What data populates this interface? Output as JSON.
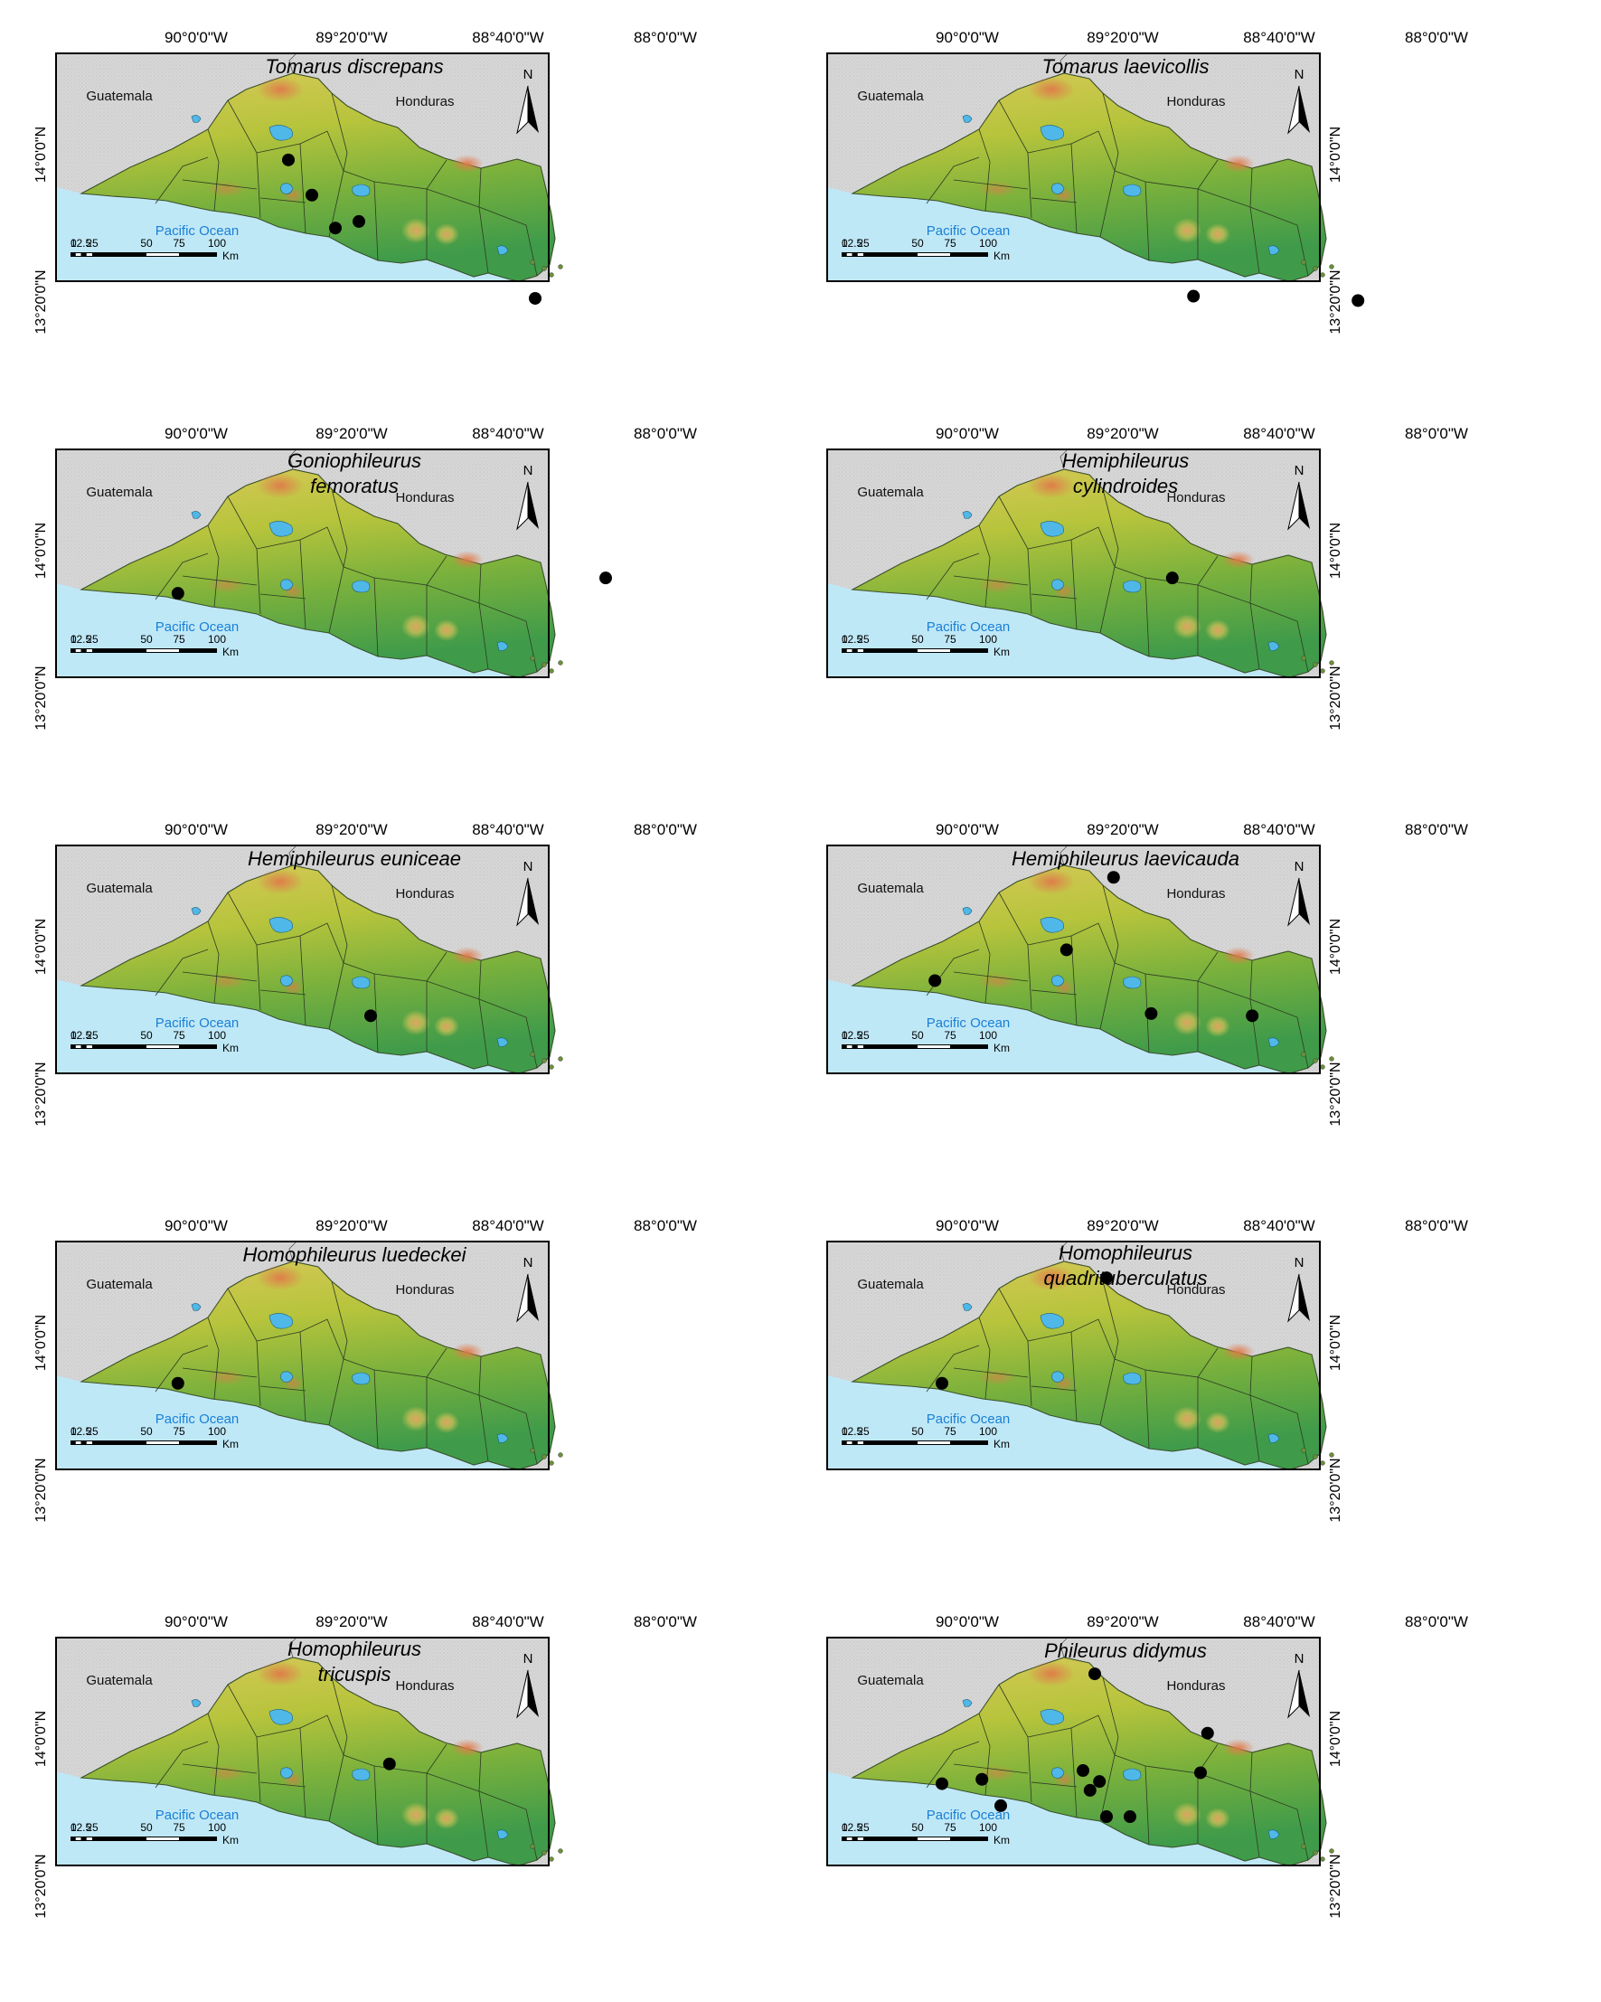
{
  "labels": {
    "north": "N",
    "guatemala": "Guatemala",
    "honduras": "Honduras",
    "ocean": "Pacific Ocean",
    "km": "Km",
    "scale_ticks": [
      "0",
      "12.5",
      "25",
      "50",
      "75",
      "100"
    ]
  },
  "lon_ticks": [
    "90°0'0\"W",
    "89°20'0\"W",
    "88°40'0\"W",
    "88°0'0\"W"
  ],
  "lat_ticks": [
    "14°0'0\"N",
    "13°20'0\"N"
  ],
  "colors": {
    "ocean": "#bfe8f7",
    "land_outside": "#d9d9d9",
    "lowland": "#3f9b4a",
    "midland": "#a8c23a",
    "highland": "#d9c95a",
    "peak": "#e07a4a",
    "lake": "#4fb8e8",
    "record": "#000000",
    "ocean_label": "#1a7fd6"
  },
  "panels": [
    {
      "id": "tomarus-discrepans",
      "species": [
        "Tomarus discrepans"
      ],
      "records": [
        [
          -89.55,
          13.98
        ],
        [
          -89.45,
          13.82
        ],
        [
          -89.35,
          13.67
        ],
        [
          -89.25,
          13.7
        ],
        [
          -88.5,
          13.35
        ]
      ]
    },
    {
      "id": "tomarus-laevicollis",
      "species": [
        "Tomarus laevicollis"
      ],
      "records": [
        [
          -88.98,
          13.36
        ],
        [
          -88.28,
          13.34
        ]
      ]
    },
    {
      "id": "goniophileurus-femoratus",
      "species": [
        "Goniophileurus",
        "femoratus"
      ],
      "records": [
        [
          -90.02,
          13.81
        ],
        [
          -88.2,
          13.88
        ]
      ]
    },
    {
      "id": "hemiphileurus-cylindroides",
      "species": [
        "Hemiphileurus",
        "cylindroides"
      ],
      "records": [
        [
          -89.07,
          13.88
        ]
      ]
    },
    {
      "id": "hemiphileurus-euniceae",
      "species": [
        "Hemiphileurus euniceae"
      ],
      "records": [
        [
          -89.2,
          13.69
        ]
      ]
    },
    {
      "id": "hemiphileurus-laevicauda",
      "species": [
        "Hemiphileurus laevicauda"
      ],
      "records": [
        [
          -89.32,
          14.32
        ],
        [
          -90.08,
          13.85
        ],
        [
          -89.52,
          13.99
        ],
        [
          -89.16,
          13.7
        ],
        [
          -88.73,
          13.69
        ]
      ]
    },
    {
      "id": "homophileurus-luedeckei",
      "species": [
        "Homophileurus luedeckei"
      ],
      "records": [
        [
          -90.02,
          13.82
        ]
      ]
    },
    {
      "id": "homophileurus-quadrituberculatus",
      "species": [
        "Homophileurus",
        "quadrituberculatus"
      ],
      "records": [
        [
          -89.35,
          14.3
        ],
        [
          -90.05,
          13.82
        ]
      ]
    },
    {
      "id": "homophileurus-tricuspis",
      "species": [
        "Homophileurus",
        "tricuspis"
      ],
      "records": [
        [
          -89.12,
          13.89
        ]
      ]
    },
    {
      "id": "phileurus-didymus",
      "species": [
        "Phileurus didymus"
      ],
      "records": [
        [
          -89.4,
          14.3
        ],
        [
          -88.92,
          14.03
        ],
        [
          -88.95,
          13.85
        ],
        [
          -89.45,
          13.86
        ],
        [
          -89.38,
          13.81
        ],
        [
          -89.42,
          13.77
        ],
        [
          -89.35,
          13.65
        ],
        [
          -89.25,
          13.65
        ],
        [
          -90.05,
          13.8
        ],
        [
          -89.88,
          13.82
        ],
        [
          -89.8,
          13.7
        ]
      ]
    }
  ]
}
